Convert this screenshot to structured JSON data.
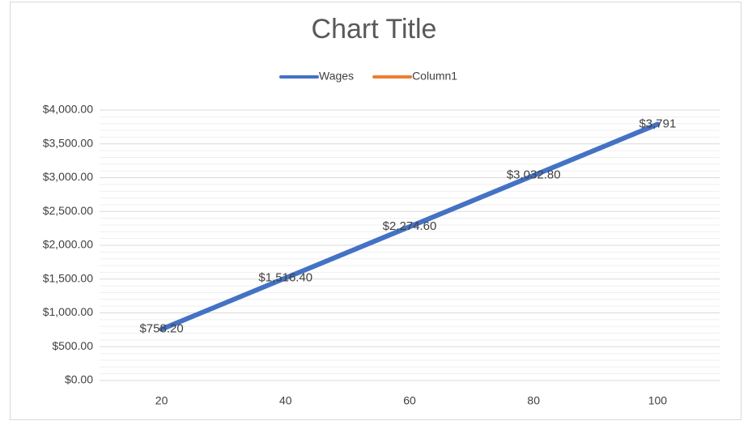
{
  "chart_data": {
    "type": "line",
    "title": "Chart Title",
    "categories": [
      "20",
      "40",
      "60",
      "80",
      "100"
    ],
    "series": [
      {
        "name": "Wages",
        "color": "#4472c4",
        "values": [
          758.2,
          1516.4,
          2274.6,
          3032.8,
          3791
        ],
        "value_labels": [
          "$758.20",
          "$1,516.40",
          "$2,274.60",
          "$3,032.80",
          "$3,791"
        ]
      },
      {
        "name": "Column1",
        "color": "#ed7d31",
        "values": [
          null,
          null,
          null,
          null,
          null
        ]
      }
    ],
    "ylim": [
      0,
      4000
    ],
    "yticks": [
      {
        "value": 0,
        "label": "$0.00"
      },
      {
        "value": 500,
        "label": "$500.00"
      },
      {
        "value": 1000,
        "label": "$1,000.00"
      },
      {
        "value": 1500,
        "label": "$1,500.00"
      },
      {
        "value": 2000,
        "label": "$2,000.00"
      },
      {
        "value": 2500,
        "label": "$2,500.00"
      },
      {
        "value": 3000,
        "label": "$3,000.00"
      },
      {
        "value": 3500,
        "label": "$3,500.00"
      },
      {
        "value": 4000,
        "label": "$4,000.00"
      }
    ],
    "minor_yticks": [
      100,
      200,
      300,
      400,
      600,
      700,
      800,
      900,
      1100,
      1200,
      1300,
      1400,
      1600,
      1700,
      1800,
      1900,
      2100,
      2200,
      2300,
      2400,
      2600,
      2700,
      2800,
      2900,
      3100,
      3200,
      3300,
      3400,
      3600,
      3700,
      3800,
      3900
    ],
    "grid": true,
    "legend": "top"
  }
}
